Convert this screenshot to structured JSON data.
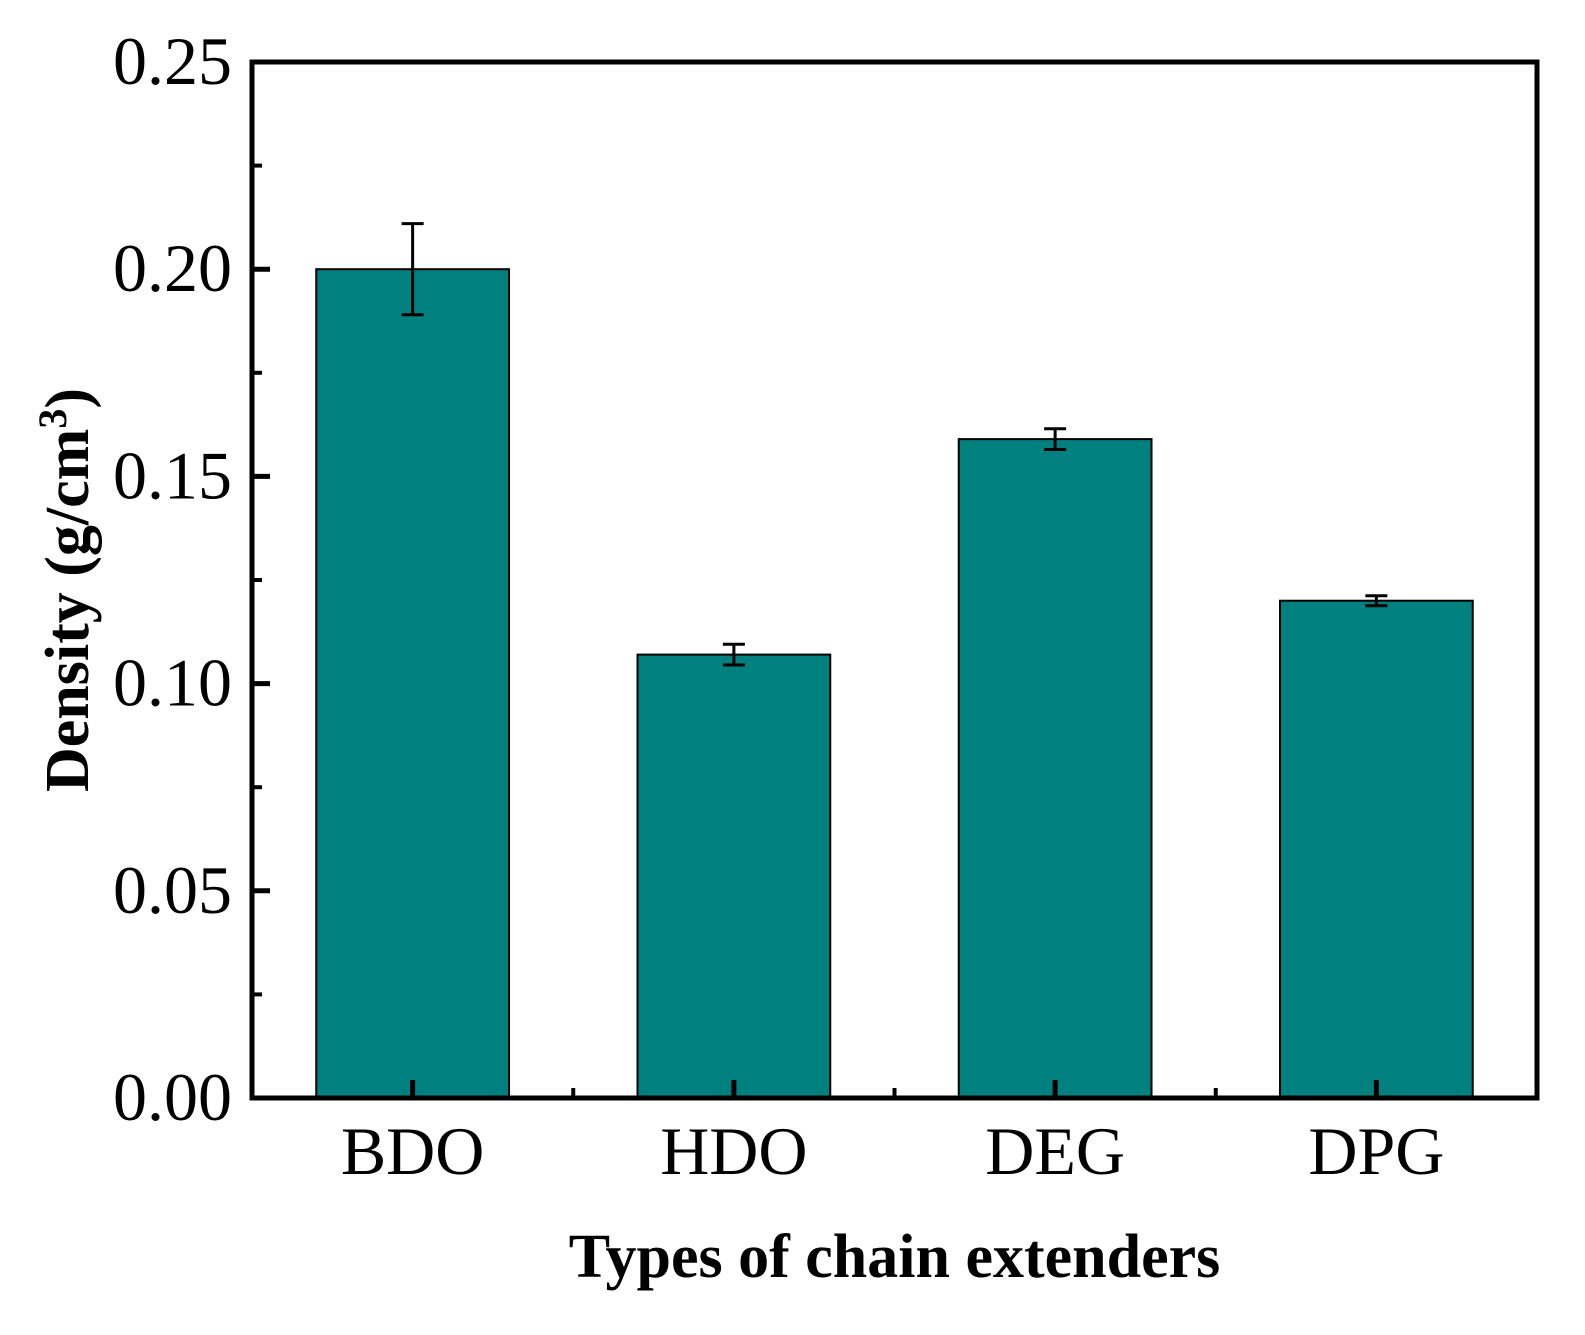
{
  "chart_data": {
    "type": "bar",
    "categories": [
      "BDO",
      "HDO",
      "DEG",
      "DPG"
    ],
    "values": [
      0.2,
      0.107,
      0.159,
      0.12
    ],
    "errors": [
      0.011,
      0.0025,
      0.0025,
      0.0012
    ],
    "xlabel": "Types of chain extenders",
    "ylabel": "Density (g/cm",
    "ylabel_sup": "3",
    "ylabel_close": ")",
    "ylim": [
      0,
      0.25
    ],
    "yticks": [
      "0.00",
      "0.05",
      "0.10",
      "0.15",
      "0.20",
      "0.25"
    ],
    "ytick_values": [
      0,
      0.05,
      0.1,
      0.15,
      0.2,
      0.25
    ],
    "bar_color": "#00807f",
    "grid": false,
    "legend": "none"
  }
}
